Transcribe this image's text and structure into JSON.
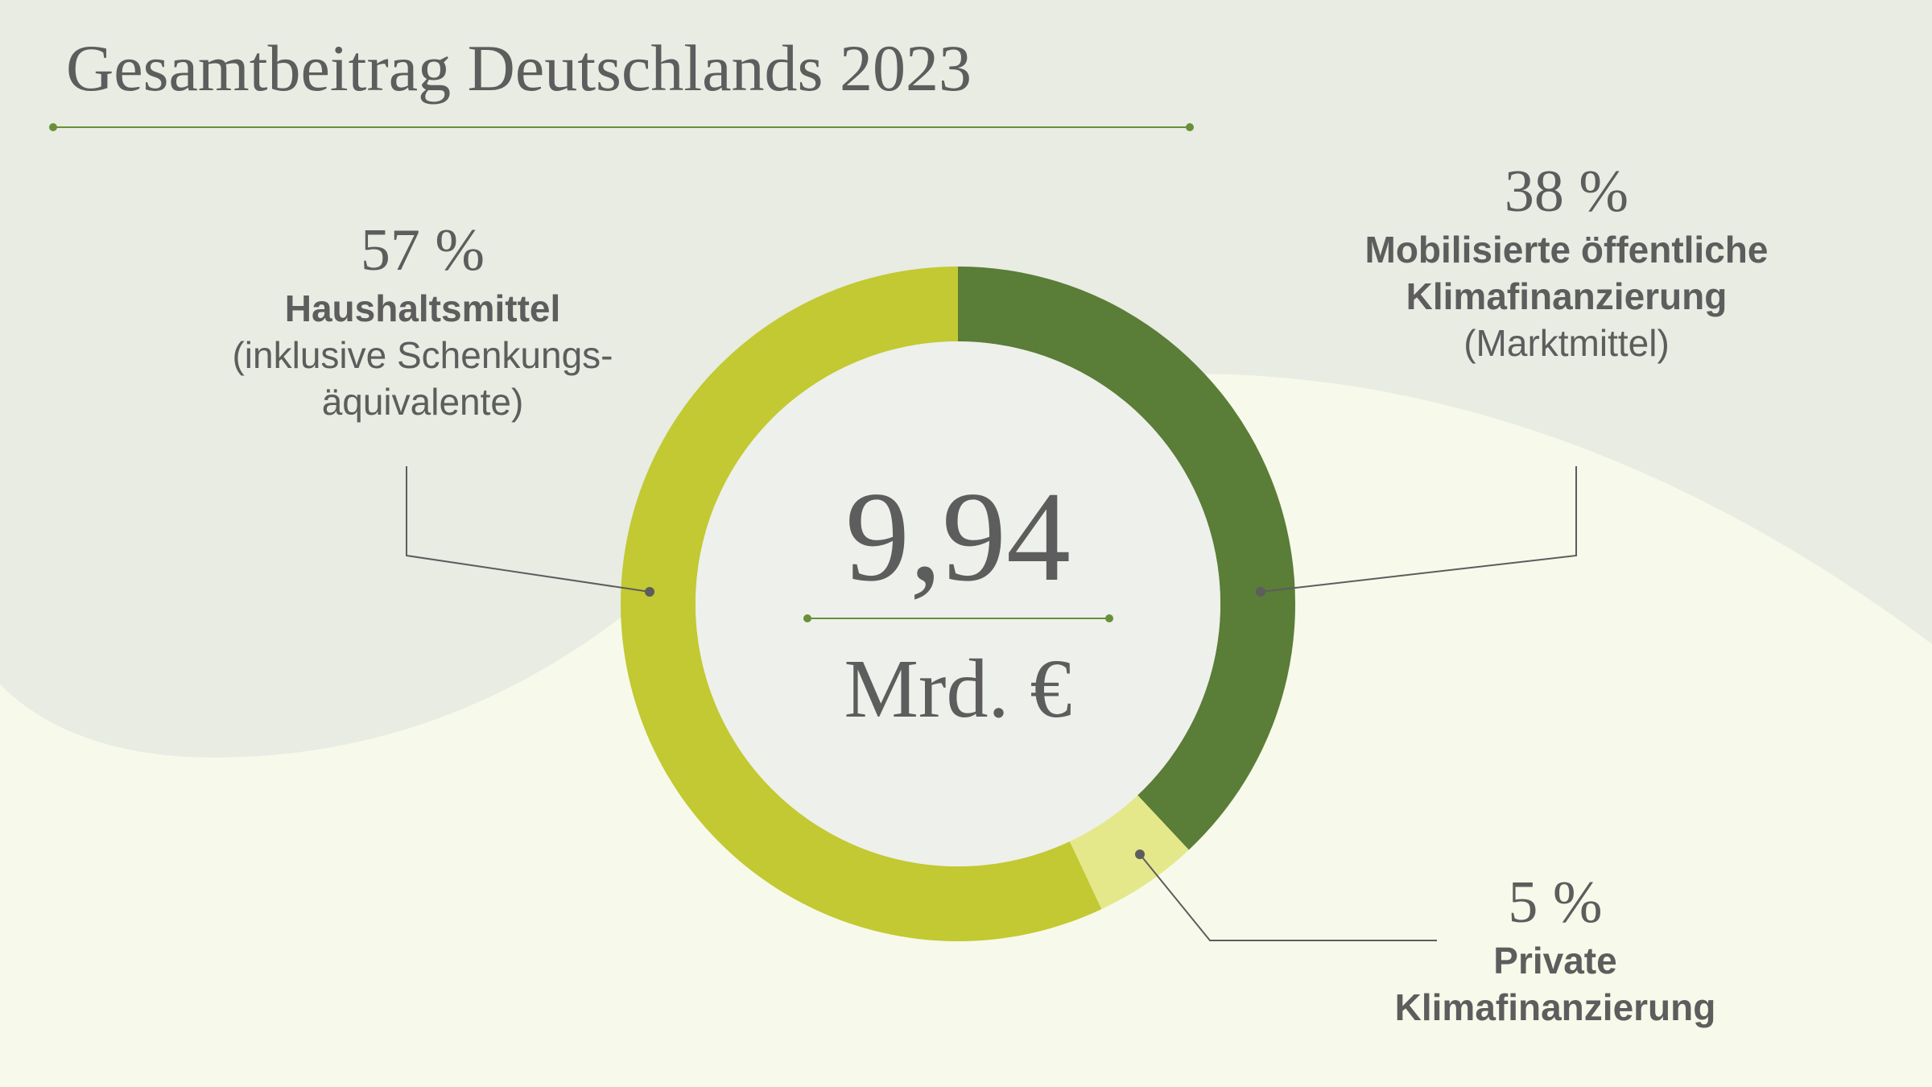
{
  "chart_data": {
    "type": "donut",
    "title": "Gesamtbeitrag Deutschlands 2023",
    "center_label": "9,94",
    "center_unit": "Mrd. €",
    "categories": [
      "Mobilisierte öffentliche Klimafinanzierung",
      "Private Klimafinanzierung",
      "Haushaltsmittel"
    ],
    "category_notes": [
      "(Marktmittel)",
      null,
      "(inklusive Schenkungs-äquivalente)"
    ],
    "values": [
      38,
      5,
      57
    ],
    "value_labels": [
      "38 %",
      "5 %",
      "57 %"
    ],
    "colors": [
      "#5a7d38",
      "#e4e88a",
      "#c2c932"
    ]
  }
}
